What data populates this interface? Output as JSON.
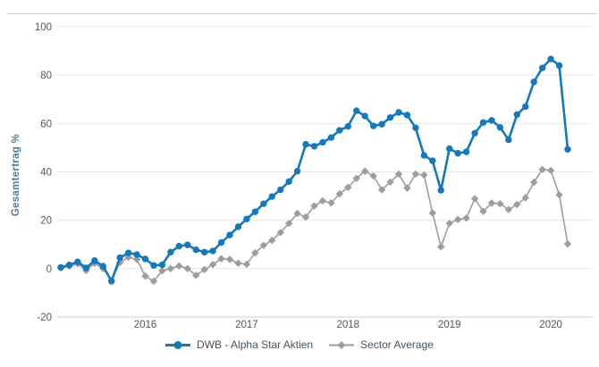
{
  "chart_data": {
    "type": "line",
    "title": "",
    "ylabel": "Gesamtertrag %",
    "xlabel": "",
    "x_tick_labels": [
      "2016",
      "2017",
      "2018",
      "2019",
      "2020"
    ],
    "y_ticks": [
      -20,
      0,
      20,
      40,
      60,
      80,
      100
    ],
    "ylim": [
      -20,
      107
    ],
    "grid": true,
    "legend_position": "bottom",
    "months": [
      "2015-03",
      "2015-04",
      "2015-05",
      "2015-06",
      "2015-07",
      "2015-08",
      "2015-09",
      "2015-10",
      "2015-11",
      "2015-12",
      "2016-01",
      "2016-02",
      "2016-03",
      "2016-04",
      "2016-05",
      "2016-06",
      "2016-07",
      "2016-08",
      "2016-09",
      "2016-10",
      "2016-11",
      "2016-12",
      "2017-01",
      "2017-02",
      "2017-03",
      "2017-04",
      "2017-05",
      "2017-06",
      "2017-07",
      "2017-08",
      "2017-09",
      "2017-10",
      "2017-11",
      "2017-12",
      "2018-01",
      "2018-02",
      "2018-03",
      "2018-04",
      "2018-05",
      "2018-06",
      "2018-07",
      "2018-08",
      "2018-09",
      "2018-10",
      "2018-11",
      "2018-12",
      "2019-01",
      "2019-02",
      "2019-03",
      "2019-04",
      "2019-05",
      "2019-06",
      "2019-07",
      "2019-08",
      "2019-09",
      "2019-10",
      "2019-11",
      "2019-12",
      "2020-01",
      "2020-02",
      "2020-03"
    ],
    "series": [
      {
        "name": "DWB - Alpha Star Aktien",
        "color": "#1478bd",
        "marker": "circle",
        "values": [
          0.5,
          1.5,
          2.8,
          0.3,
          3.3,
          1.0,
          -5.2,
          4.5,
          6.5,
          5.8,
          4.0,
          1.3,
          1.6,
          6.8,
          9.3,
          9.8,
          7.8,
          6.8,
          7.3,
          10.8,
          13.9,
          17.3,
          20.5,
          23.5,
          26.8,
          29.8,
          32.6,
          36.0,
          40.3,
          51.4,
          50.6,
          52.2,
          54.2,
          57.2,
          58.8,
          65.3,
          63.1,
          59.0,
          59.7,
          62.5,
          64.6,
          63.5,
          58.2,
          46.8,
          44.6,
          32.4,
          49.6,
          47.7,
          48.3,
          56.0,
          60.4,
          61.3,
          58.4,
          53.3,
          63.7,
          67.0,
          77.2,
          83.0,
          86.7,
          84.0,
          49.3
        ]
      },
      {
        "name": "Sector Average",
        "color": "#9d9d9d",
        "marker": "diamond",
        "values": [
          0.3,
          1.0,
          2.0,
          -0.8,
          2.2,
          0.0,
          -4.8,
          2.5,
          4.7,
          3.8,
          -3.1,
          -5.2,
          -0.9,
          0.0,
          1.1,
          0.0,
          -2.8,
          -0.4,
          1.7,
          4.1,
          3.8,
          2.2,
          1.8,
          6.5,
          9.6,
          11.7,
          14.9,
          18.7,
          22.8,
          21.3,
          25.9,
          28.0,
          27.2,
          30.9,
          33.6,
          37.3,
          40.3,
          38.3,
          32.6,
          35.8,
          39.1,
          33.3,
          39.1,
          38.7,
          23.0,
          9.0,
          18.7,
          20.3,
          20.9,
          28.9,
          23.7,
          27.1,
          26.8,
          24.4,
          26.5,
          29.3,
          35.7,
          41.0,
          40.6,
          30.5,
          10.2
        ]
      }
    ],
    "colors": {
      "grid": "#e6e8eb",
      "axis_line": "#cbd0d4",
      "top_divider": "#c9ced3",
      "tick_text": "#53575a",
      "legend_text": "#44535f",
      "y_title": "#4a7ca5",
      "background": "#ffffff"
    }
  }
}
